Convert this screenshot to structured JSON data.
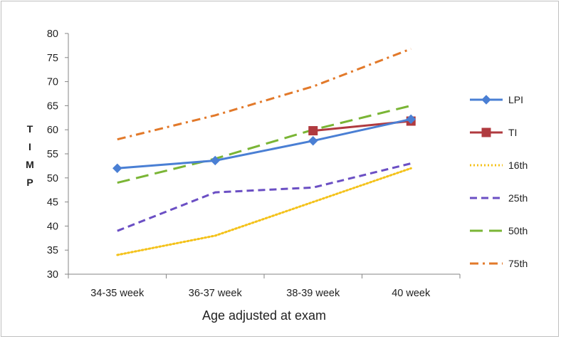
{
  "chart_data": {
    "type": "line",
    "title": "",
    "xlabel": "Age adjusted at exam",
    "ylabel": "TIMP",
    "categories": [
      "34-35 week",
      "36-37 week",
      "38-39 week",
      "40 week"
    ],
    "ylim": [
      30,
      80
    ],
    "yticks": [
      30,
      35,
      40,
      45,
      50,
      55,
      60,
      65,
      70,
      75,
      80
    ],
    "grid": false,
    "legend_position": "right",
    "series": [
      {
        "name": "LPI",
        "values": [
          52,
          53.6,
          57.7,
          62.2
        ],
        "color": "#4a7fd4",
        "style": "solid",
        "marker": "diamond"
      },
      {
        "name": "TI",
        "values": [
          null,
          null,
          59.8,
          61.8
        ],
        "color": "#b03a3f",
        "style": "solid",
        "marker": "square"
      },
      {
        "name": "16th",
        "values": [
          34,
          38,
          45,
          52
        ],
        "color": "#f4c21a",
        "style": "dotted",
        "marker": "none"
      },
      {
        "name": "25th",
        "values": [
          39,
          47,
          48,
          53
        ],
        "color": "#6b4fc4",
        "style": "dashed",
        "marker": "none"
      },
      {
        "name": "50th",
        "values": [
          49,
          54,
          60,
          65
        ],
        "color": "#7ab535",
        "style": "longdash",
        "marker": "none"
      },
      {
        "name": "75th",
        "values": [
          58,
          63,
          69,
          76.8
        ],
        "color": "#e2792a",
        "style": "dashdot",
        "marker": "none"
      }
    ]
  }
}
